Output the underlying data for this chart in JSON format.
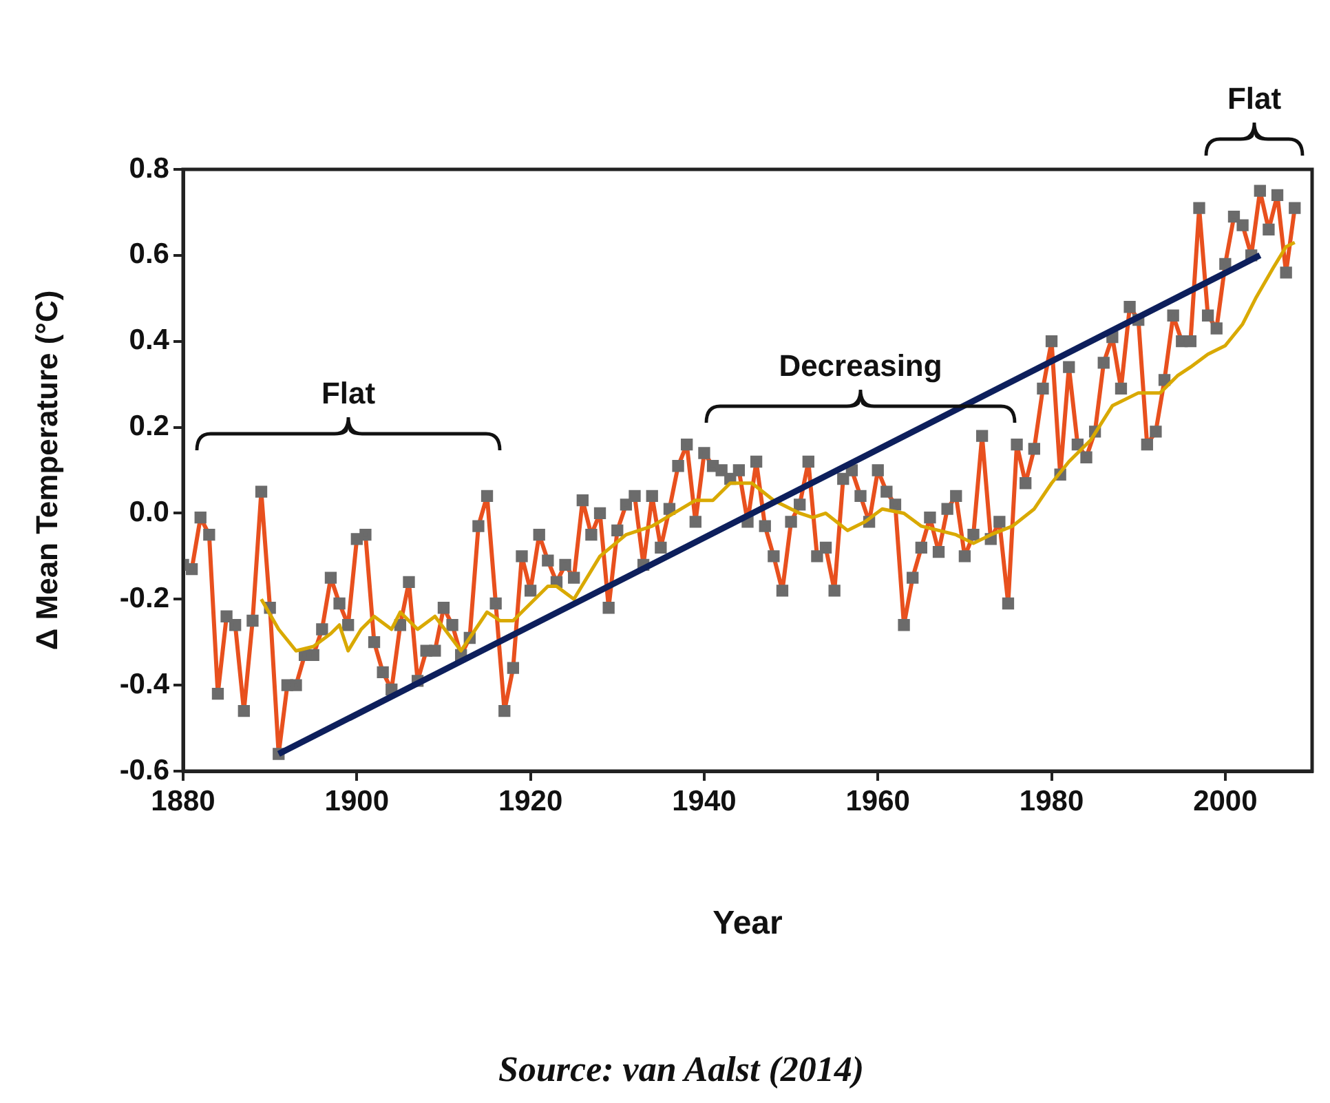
{
  "chart_data": {
    "type": "line",
    "xlabel": "Year",
    "ylabel": "Δ Mean Temperature (°C)",
    "xlim": [
      1880,
      2010
    ],
    "xticks": [
      1880,
      1900,
      1920,
      1940,
      1960,
      1980,
      2000
    ],
    "ylim": [
      -0.6,
      0.8
    ],
    "yticks": [
      -0.6,
      -0.4,
      -0.2,
      {
        "value": 0,
        "label": "0.0"
      },
      0.2,
      0.4,
      0.6,
      0.8
    ],
    "grid": false,
    "legend": false,
    "series": [
      {
        "color": "#e8501e",
        "marker": "square",
        "x": [
          1880,
          1881,
          1882,
          1883,
          1884,
          1885,
          1886,
          1887,
          1888,
          1889,
          1890,
          1891,
          1892,
          1893,
          1894,
          1895,
          1896,
          1897,
          1898,
          1899,
          1900,
          1901,
          1902,
          1903,
          1904,
          1905,
          1906,
          1907,
          1908,
          1909,
          1910,
          1911,
          1912,
          1913,
          1914,
          1915,
          1916,
          1917,
          1918,
          1919,
          1920,
          1921,
          1922,
          1923,
          1924,
          1925,
          1926,
          1927,
          1928,
          1929,
          1930,
          1931,
          1932,
          1933,
          1934,
          1935,
          1936,
          1937,
          1938,
          1939,
          1940,
          1941,
          1942,
          1943,
          1944,
          1945,
          1946,
          1947,
          1948,
          1949,
          1950,
          1951,
          1952,
          1953,
          1954,
          1955,
          1956,
          1957,
          1958,
          1959,
          1960,
          1961,
          1962,
          1963,
          1964,
          1965,
          1966,
          1967,
          1968,
          1969,
          1970,
          1971,
          1972,
          1973,
          1974,
          1975,
          1976,
          1977,
          1978,
          1979,
          1980,
          1981,
          1982,
          1983,
          1984,
          1985,
          1986,
          1987,
          1988,
          1989,
          1990,
          1991,
          1992,
          1993,
          1994,
          1995,
          1996,
          1997,
          1998,
          1999,
          2000,
          2001,
          2002,
          2003,
          2004,
          2005,
          2006,
          2007,
          2008
        ],
        "values": [
          -0.12,
          -0.13,
          -0.01,
          -0.05,
          -0.42,
          -0.24,
          -0.26,
          -0.46,
          -0.25,
          0.05,
          -0.22,
          -0.56,
          -0.4,
          -0.4,
          -0.33,
          -0.33,
          -0.27,
          -0.15,
          -0.21,
          -0.26,
          -0.06,
          -0.05,
          -0.3,
          -0.37,
          -0.41,
          -0.26,
          -0.16,
          -0.39,
          -0.32,
          -0.32,
          -0.22,
          -0.26,
          -0.33,
          -0.29,
          -0.03,
          0.04,
          -0.21,
          -0.46,
          -0.36,
          -0.1,
          -0.18,
          -0.05,
          -0.11,
          -0.16,
          -0.12,
          -0.15,
          0.03,
          -0.05,
          0.0,
          -0.22,
          -0.04,
          0.02,
          0.04,
          -0.12,
          0.04,
          -0.08,
          0.01,
          0.11,
          0.16,
          -0.02,
          0.14,
          0.11,
          0.1,
          0.08,
          0.1,
          -0.02,
          0.12,
          -0.03,
          -0.1,
          -0.18,
          -0.02,
          0.02,
          0.12,
          -0.1,
          -0.08,
          -0.18,
          0.08,
          0.1,
          0.04,
          -0.02,
          0.1,
          0.05,
          0.02,
          -0.26,
          -0.15,
          -0.08,
          -0.01,
          -0.09,
          0.01,
          0.04,
          -0.1,
          -0.05,
          0.18,
          -0.06,
          -0.02,
          -0.21,
          0.16,
          0.07,
          0.15,
          0.29,
          0.4,
          0.09,
          0.34,
          0.16,
          0.13,
          0.19,
          0.35,
          0.41,
          0.29,
          0.48,
          0.45,
          0.16,
          0.19,
          0.31,
          0.46,
          0.4,
          0.4,
          0.71,
          0.46,
          0.43,
          0.58,
          0.69,
          0.67,
          0.6,
          0.75,
          0.66,
          0.74,
          0.56,
          0.71
        ]
      },
      {
        "color": "#d9a900",
        "marker": "none",
        "x": [
          1889,
          1891,
          1893,
          1895,
          1897,
          1898,
          1899,
          1900.5,
          1902,
          1904,
          1905,
          1907,
          1909,
          1910.5,
          1912,
          1914,
          1915,
          1916.5,
          1918,
          1920,
          1922,
          1923,
          1925,
          1928,
          1931,
          1934,
          1936.5,
          1939,
          1941,
          1943,
          1945.5,
          1948,
          1951,
          1952.5,
          1954,
          1956.5,
          1958.5,
          1960.5,
          1963,
          1965,
          1967,
          1969,
          1971,
          1973,
          1975.5,
          1978,
          1980,
          1982,
          1984.5,
          1987,
          1990,
          1992.5,
          1994.5,
          1996,
          1998,
          2000,
          2002,
          2003.5,
          2005.5,
          2007,
          2008
        ],
        "values": [
          -0.2,
          -0.27,
          -0.32,
          -0.31,
          -0.28,
          -0.26,
          -0.32,
          -0.27,
          -0.24,
          -0.27,
          -0.23,
          -0.27,
          -0.24,
          -0.28,
          -0.32,
          -0.26,
          -0.23,
          -0.25,
          -0.25,
          -0.21,
          -0.17,
          -0.17,
          -0.2,
          -0.1,
          -0.05,
          -0.03,
          0.0,
          0.03,
          0.03,
          0.07,
          0.07,
          0.03,
          0.0,
          -0.01,
          0.0,
          -0.04,
          -0.02,
          0.01,
          0.0,
          -0.03,
          -0.04,
          -0.05,
          -0.07,
          -0.05,
          -0.03,
          0.01,
          0.07,
          0.12,
          0.17,
          0.25,
          0.28,
          0.28,
          0.32,
          0.34,
          0.37,
          0.39,
          0.44,
          0.5,
          0.57,
          0.62,
          0.63
        ]
      },
      {
        "color": "#0d1f5c",
        "marker": "none",
        "x": [
          1891,
          2004
        ],
        "values": [
          -0.56,
          0.6
        ]
      }
    ],
    "annotations": [
      "Flat",
      "Decreasing",
      "Flat",
      "Source: van Aalst (2014)"
    ]
  }
}
